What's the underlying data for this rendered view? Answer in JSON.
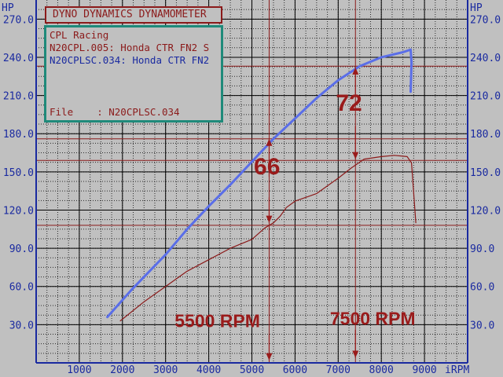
{
  "title_box": {
    "text": "DYNO DYNAMICS DYNAMOMETER"
  },
  "info_box": {
    "line1": "CPL Racing",
    "line2": "N20CPL.005: Honda CTR FN2 S",
    "line3": "N20CPLSC.034: Honda CTR FN2",
    "file_line": "File    : N20CPLSC.034"
  },
  "colors": {
    "background": "#c0c0c0",
    "grid_major": "#000000",
    "grid_minor": "#2a2a2a",
    "axis_text": "#1a2aa0",
    "series_blue": "#5a6ee8",
    "series_red": "#8b1a1a",
    "annotation": "#9a1b1b",
    "info_border": "#1f8a7a"
  },
  "chart_data": {
    "type": "line",
    "y_unit_left": "HP",
    "y_unit_right": "HP",
    "x_unit": "iRPM",
    "x_range": [
      0,
      10000
    ],
    "y_range": [
      0,
      285
    ],
    "x_ticks": [
      {
        "value": 1000,
        "label": "1000"
      },
      {
        "value": 2000,
        "label": "2000"
      },
      {
        "value": 3000,
        "label": "3000"
      },
      {
        "value": 4000,
        "label": "4000"
      },
      {
        "value": 5000,
        "label": "5000"
      },
      {
        "value": 6000,
        "label": "6000"
      },
      {
        "value": 7000,
        "label": "7000"
      },
      {
        "value": 8000,
        "label": "8000"
      },
      {
        "value": 9000,
        "label": "9000"
      }
    ],
    "y_ticks": [
      {
        "value": 30,
        "label": "30.0"
      },
      {
        "value": 60,
        "label": "60.0"
      },
      {
        "value": 90,
        "label": "90.0"
      },
      {
        "value": 120,
        "label": "120.0"
      },
      {
        "value": 150,
        "label": "150.0"
      },
      {
        "value": 180,
        "label": "180.0"
      },
      {
        "value": 210,
        "label": "210.0"
      },
      {
        "value": 240,
        "label": "240.0"
      },
      {
        "value": 270,
        "label": "270.0"
      }
    ],
    "grid": true,
    "series": [
      {
        "name": "N20CPLSC.034: Honda CTR FN2",
        "color": "#5a6ee8",
        "points": [
          [
            1650,
            36
          ],
          [
            2200,
            57
          ],
          [
            3000,
            85
          ],
          [
            3500,
            105
          ],
          [
            4000,
            123
          ],
          [
            4500,
            140
          ],
          [
            5000,
            158
          ],
          [
            5500,
            176
          ],
          [
            6000,
            192
          ],
          [
            6500,
            208
          ],
          [
            7000,
            222
          ],
          [
            7500,
            233
          ],
          [
            8000,
            240
          ],
          [
            8500,
            244
          ],
          [
            8680,
            246
          ],
          [
            8700,
            236
          ],
          [
            8680,
            213
          ]
        ]
      },
      {
        "name": "N20CPL.005: Honda CTR FN2 S",
        "color": "#8b1a1a",
        "points": [
          [
            1950,
            33
          ],
          [
            2500,
            48
          ],
          [
            3000,
            60
          ],
          [
            3500,
            72
          ],
          [
            4000,
            81
          ],
          [
            4500,
            90
          ],
          [
            5000,
            97
          ],
          [
            5300,
            106
          ],
          [
            5500,
            110
          ],
          [
            5650,
            115
          ],
          [
            5800,
            122
          ],
          [
            6000,
            127
          ],
          [
            6500,
            133
          ],
          [
            7000,
            145
          ],
          [
            7300,
            153
          ],
          [
            7600,
            160
          ],
          [
            8000,
            162
          ],
          [
            8300,
            163
          ],
          [
            8600,
            162
          ],
          [
            8700,
            157
          ],
          [
            8800,
            110
          ]
        ]
      }
    ],
    "reference_lines": [
      {
        "type": "hline",
        "y": 176
      },
      {
        "type": "hline",
        "y": 108
      },
      {
        "type": "hline",
        "y": 233
      },
      {
        "type": "hline",
        "y": 159
      },
      {
        "type": "vline",
        "x": 5400
      },
      {
        "type": "vline",
        "x": 7400
      }
    ],
    "annotations": [
      {
        "text": "66",
        "x": 5350,
        "y": 148,
        "size": 30
      },
      {
        "text": "72",
        "x": 7250,
        "y": 198,
        "size": 30
      },
      {
        "text": "5500 RPM",
        "x": 4200,
        "y": 28,
        "size": 23
      },
      {
        "text": "7500 RPM",
        "x": 7800,
        "y": 30,
        "size": 23
      }
    ],
    "arrows": [
      {
        "x": 5400,
        "y_from": 146,
        "y_to": 176
      },
      {
        "x": 5400,
        "y_from": 130,
        "y_to": 110
      },
      {
        "x": 7400,
        "y_from": 211,
        "y_to": 232
      },
      {
        "x": 7400,
        "y_from": 186,
        "y_to": 160
      },
      {
        "x": 5400,
        "y_from": 22,
        "y_to": 2
      },
      {
        "x": 7400,
        "y_from": 26,
        "y_to": 4
      }
    ]
  }
}
